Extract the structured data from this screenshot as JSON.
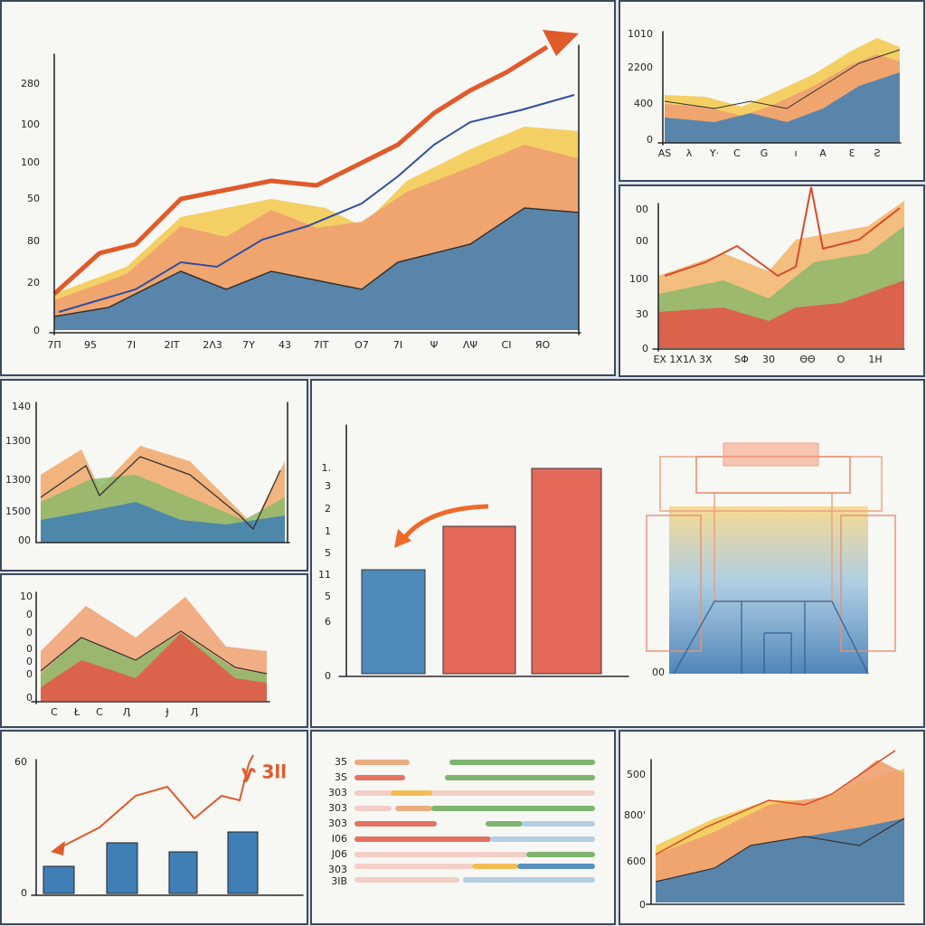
{
  "panels": [
    {
      "y_labels": [
        "280",
        "100",
        "100",
        "50",
        "80",
        "20",
        "0"
      ],
      "x_labels": [
        "7Π",
        "95",
        "7I",
        "2IT",
        "2Λ3",
        "7Y",
        "43",
        "7IT",
        "O7",
        "7I",
        "Ψ",
        "ΛΨ",
        "CI",
        "ЯO"
      ]
    },
    {
      "y_labels": [
        "1010",
        "2200",
        "400",
        "0"
      ],
      "x_labels": [
        "AS",
        "λ",
        "Y·",
        "C",
        "G",
        "ı",
        "A",
        "Ɛ",
        "Ƨ"
      ]
    },
    {
      "y_labels": [
        "00",
        "00",
        "100",
        "30",
        "0"
      ],
      "x_labels": [
        "EX 1X1Λ 3X",
        "SΦ",
        "30",
        "ΘΘ",
        "O",
        "1H"
      ]
    },
    {
      "y_labels": [
        "140",
        "1300",
        "1300",
        "1500",
        "00"
      ],
      "x_labels": []
    },
    {
      "y_labels": [
        "10",
        "0",
        "0",
        "0",
        "0",
        "0",
        "0"
      ],
      "x_labels": [
        "C",
        "Ł",
        "C",
        "Ӆ",
        "Ɉ",
        "Ӆ"
      ]
    },
    {
      "y_labels": [
        "1.",
        "3",
        "2",
        "1",
        "5",
        "11",
        "5",
        "6",
        "0"
      ],
      "right_label": "00",
      "x_labels": []
    },
    {
      "y_labels": [
        "60",
        "0"
      ],
      "annotation": "ƴ 3ll",
      "x_labels": []
    },
    {
      "y_labels": [
        "35",
        "3S",
        "303",
        "303",
        "303",
        "I06",
        "J06",
        "303",
        "3IB"
      ],
      "x_labels": []
    },
    {
      "y_labels": [
        "500",
        "800'",
        "600",
        "0"
      ],
      "x_labels": []
    }
  ]
}
